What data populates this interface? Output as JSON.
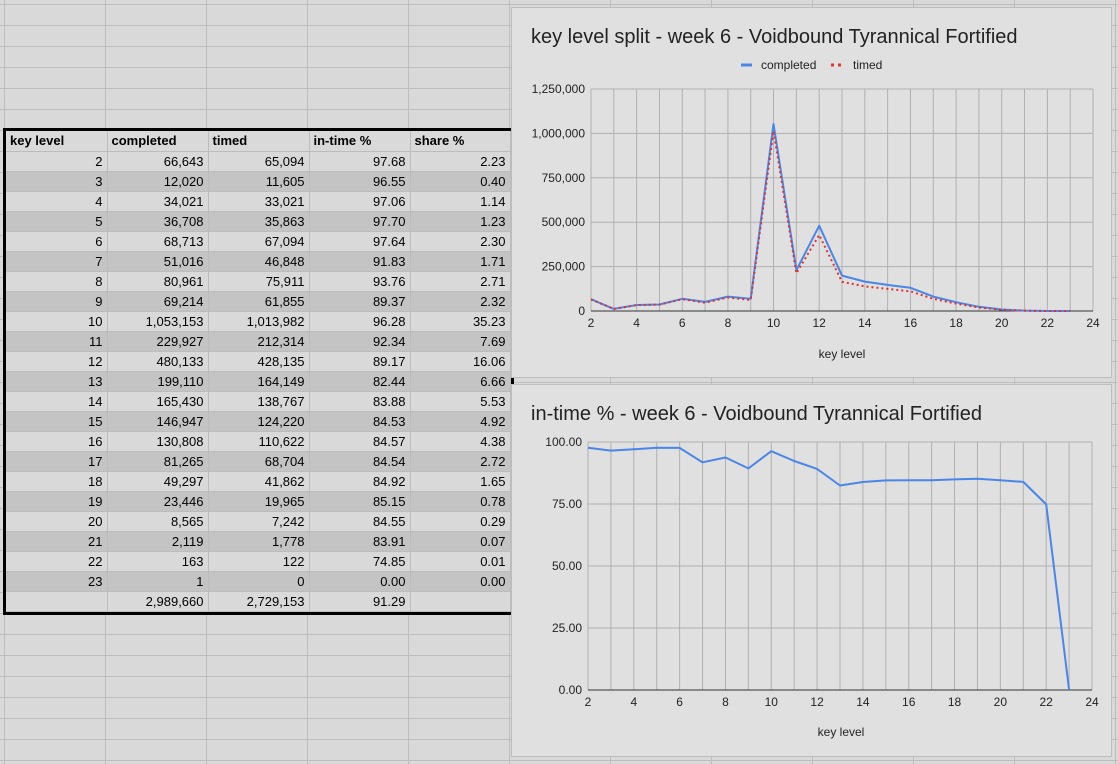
{
  "table": {
    "headers": [
      "key level",
      "completed",
      "timed",
      "in-time %",
      "share %"
    ],
    "rows": [
      [
        "2",
        "66,643",
        "65,094",
        "97.68",
        "2.23"
      ],
      [
        "3",
        "12,020",
        "11,605",
        "96.55",
        "0.40"
      ],
      [
        "4",
        "34,021",
        "33,021",
        "97.06",
        "1.14"
      ],
      [
        "5",
        "36,708",
        "35,863",
        "97.70",
        "1.23"
      ],
      [
        "6",
        "68,713",
        "67,094",
        "97.64",
        "2.30"
      ],
      [
        "7",
        "51,016",
        "46,848",
        "91.83",
        "1.71"
      ],
      [
        "8",
        "80,961",
        "75,911",
        "93.76",
        "2.71"
      ],
      [
        "9",
        "69,214",
        "61,855",
        "89.37",
        "2.32"
      ],
      [
        "10",
        "1,053,153",
        "1,013,982",
        "96.28",
        "35.23"
      ],
      [
        "11",
        "229,927",
        "212,314",
        "92.34",
        "7.69"
      ],
      [
        "12",
        "480,133",
        "428,135",
        "89.17",
        "16.06"
      ],
      [
        "13",
        "199,110",
        "164,149",
        "82.44",
        "6.66"
      ],
      [
        "14",
        "165,430",
        "138,767",
        "83.88",
        "5.53"
      ],
      [
        "15",
        "146,947",
        "124,220",
        "84.53",
        "4.92"
      ],
      [
        "16",
        "130,808",
        "110,622",
        "84.57",
        "4.38"
      ],
      [
        "17",
        "81,265",
        "68,704",
        "84.54",
        "2.72"
      ],
      [
        "18",
        "49,297",
        "41,862",
        "84.92",
        "1.65"
      ],
      [
        "19",
        "23,446",
        "19,965",
        "85.15",
        "0.78"
      ],
      [
        "20",
        "8,565",
        "7,242",
        "84.55",
        "0.29"
      ],
      [
        "21",
        "2,119",
        "1,778",
        "83.91",
        "0.07"
      ],
      [
        "22",
        "163",
        "122",
        "74.85",
        "0.01"
      ],
      [
        "23",
        "1",
        "0",
        "0.00",
        "0.00"
      ]
    ],
    "total": [
      "",
      "2,989,660",
      "2,729,153",
      "91.29",
      ""
    ]
  },
  "chart_data": [
    {
      "type": "line",
      "title": "key level split - week 6 - Voidbound Tyrannical Fortified",
      "xlabel": "key level",
      "ylabel": "",
      "x": [
        2,
        3,
        4,
        5,
        6,
        7,
        8,
        9,
        10,
        11,
        12,
        13,
        14,
        15,
        16,
        17,
        18,
        19,
        20,
        21,
        22,
        23
      ],
      "series": [
        {
          "name": "completed",
          "color": "#4a86e8",
          "dash": "solid",
          "values": [
            66643,
            12020,
            34021,
            36708,
            68713,
            51016,
            80961,
            69214,
            1053153,
            229927,
            480133,
            199110,
            165430,
            146947,
            130808,
            81265,
            49297,
            23446,
            8565,
            2119,
            163,
            1
          ]
        },
        {
          "name": "timed",
          "color": "#e0332e",
          "dash": "dotted",
          "values": [
            65094,
            11605,
            33021,
            35863,
            67094,
            46848,
            75911,
            61855,
            1013982,
            212314,
            428135,
            164149,
            138767,
            124220,
            110622,
            68704,
            41862,
            19965,
            7242,
            1778,
            122,
            0
          ]
        }
      ],
      "xlim": [
        2,
        24
      ],
      "ylim": [
        0,
        1250000
      ],
      "xticks": [
        "2",
        "4",
        "6",
        "8",
        "10",
        "12",
        "14",
        "16",
        "18",
        "20",
        "22",
        "24"
      ],
      "yticks": [
        "0",
        "250,000",
        "500,000",
        "750,000",
        "1,000,000",
        "1,250,000"
      ],
      "grid": true,
      "legend": "top"
    },
    {
      "type": "line",
      "title": "in-time % - week 6 - Voidbound Tyrannical Fortified",
      "xlabel": "key level",
      "ylabel": "",
      "x": [
        2,
        3,
        4,
        5,
        6,
        7,
        8,
        9,
        10,
        11,
        12,
        13,
        14,
        15,
        16,
        17,
        18,
        19,
        20,
        21,
        22,
        23
      ],
      "series": [
        {
          "name": "",
          "color": "#4a86e8",
          "dash": "solid",
          "values": [
            97.68,
            96.55,
            97.06,
            97.7,
            97.64,
            91.83,
            93.76,
            89.37,
            96.28,
            92.34,
            89.17,
            82.44,
            83.88,
            84.53,
            84.57,
            84.54,
            84.92,
            85.15,
            84.55,
            83.91,
            74.85,
            0.0
          ]
        }
      ],
      "xlim": [
        2,
        24
      ],
      "ylim": [
        0,
        100
      ],
      "xticks": [
        "2",
        "4",
        "6",
        "8",
        "10",
        "12",
        "14",
        "16",
        "18",
        "20",
        "22",
        "24"
      ],
      "yticks": [
        "0.00",
        "25.00",
        "50.00",
        "75.00",
        "100.00"
      ],
      "grid": true,
      "legend": "none"
    }
  ]
}
